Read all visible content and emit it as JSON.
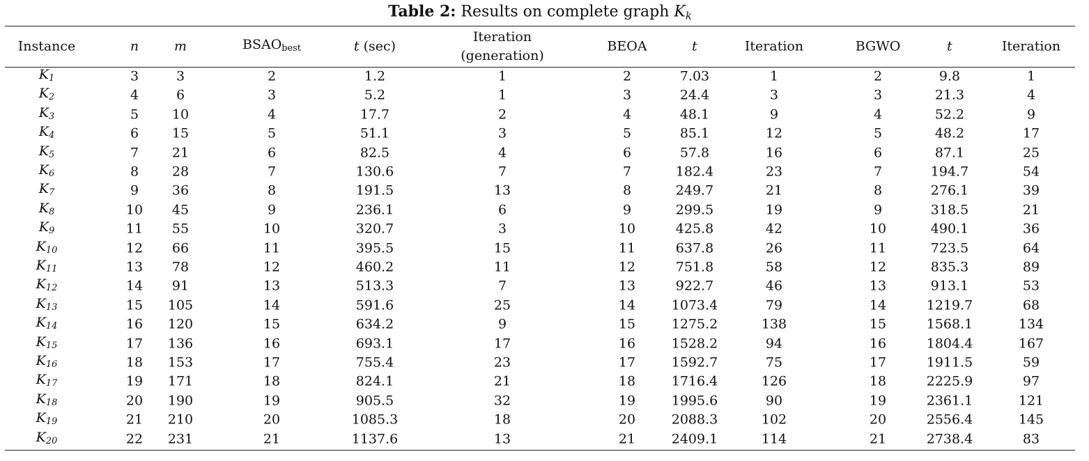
{
  "title": [
    {
      "text": "Table 2:",
      "bold": true
    },
    {
      "text": " Results on complete graph "
    },
    {
      "text": "K",
      "italic": true
    },
    {
      "text": "k",
      "sub": true,
      "italic": true
    }
  ],
  "table": {
    "header": [
      "Instance",
      [
        {
          "text": "n",
          "italic": true
        }
      ],
      [
        {
          "text": "m",
          "italic": true
        }
      ],
      [
        {
          "text": "BSAO"
        },
        {
          "text": "best",
          "sub": true
        }
      ],
      [
        {
          "text": "t",
          "italic": true
        },
        {
          "text": " (sec)"
        }
      ],
      [
        {
          "text": "Iteration"
        },
        {
          "text": "(generation)",
          "newline": true
        }
      ],
      "BEOA",
      [
        {
          "text": "t",
          "italic": true
        }
      ],
      "Iteration",
      "BGWO",
      [
        {
          "text": "t",
          "italic": true
        }
      ],
      "Iteration"
    ],
    "rows": [
      [
        [
          {
            "text": "K",
            "italic": true
          },
          {
            "text": "1",
            "sub": true,
            "italic": true
          }
        ],
        "3",
        "3",
        "2",
        "1.2",
        "1",
        "2",
        "7.03",
        "1",
        "2",
        "9.8",
        "1"
      ],
      [
        [
          {
            "text": "K",
            "italic": true
          },
          {
            "text": "2",
            "sub": true,
            "italic": true
          }
        ],
        "4",
        "6",
        "3",
        "5.2",
        "1",
        "3",
        "24.4",
        "3",
        "3",
        "21.3",
        "4"
      ],
      [
        [
          {
            "text": "K",
            "italic": true
          },
          {
            "text": "3",
            "sub": true,
            "italic": true
          }
        ],
        "5",
        "10",
        "4",
        "17.7",
        "2",
        "4",
        "48.1",
        "9",
        "4",
        "52.2",
        "9"
      ],
      [
        [
          {
            "text": "K",
            "italic": true
          },
          {
            "text": "4",
            "sub": true,
            "italic": true
          }
        ],
        "6",
        "15",
        "5",
        "51.1",
        "3",
        "5",
        "85.1",
        "12",
        "5",
        "48.2",
        "17"
      ],
      [
        [
          {
            "text": "K",
            "italic": true
          },
          {
            "text": "5",
            "sub": true,
            "italic": true
          }
        ],
        "7",
        "21",
        "6",
        "82.5",
        "4",
        "6",
        "57.8",
        "16",
        "6",
        "87.1",
        "25"
      ],
      [
        [
          {
            "text": "K",
            "italic": true
          },
          {
            "text": "6",
            "sub": true,
            "italic": true
          }
        ],
        "8",
        "28",
        "7",
        "130.6",
        "7",
        "7",
        "182.4",
        "23",
        "7",
        "194.7",
        "54"
      ],
      [
        [
          {
            "text": "K",
            "italic": true
          },
          {
            "text": "7",
            "sub": true,
            "italic": true
          }
        ],
        "9",
        "36",
        "8",
        "191.5",
        "13",
        "8",
        "249.7",
        "21",
        "8",
        "276.1",
        "39"
      ],
      [
        [
          {
            "text": "K",
            "italic": true
          },
          {
            "text": "8",
            "sub": true,
            "italic": true
          }
        ],
        "10",
        "45",
        "9",
        "236.1",
        "6",
        "9",
        "299.5",
        "19",
        "9",
        "318.5",
        "21"
      ],
      [
        [
          {
            "text": "K",
            "italic": true
          },
          {
            "text": "9",
            "sub": true,
            "italic": true
          }
        ],
        "11",
        "55",
        "10",
        "320.7",
        "3",
        "10",
        "425.8",
        "42",
        "10",
        "490.1",
        "36"
      ],
      [
        [
          {
            "text": "K",
            "italic": true
          },
          {
            "text": "10",
            "sub": true,
            "italic": true
          }
        ],
        "12",
        "66",
        "11",
        "395.5",
        "15",
        "11",
        "637.8",
        "26",
        "11",
        "723.5",
        "64"
      ],
      [
        [
          {
            "text": "K",
            "italic": true
          },
          {
            "text": "11",
            "sub": true,
            "italic": true
          }
        ],
        "13",
        "78",
        "12",
        "460.2",
        "11",
        "12",
        "751.8",
        "58",
        "12",
        "835.3",
        "89"
      ],
      [
        [
          {
            "text": "K",
            "italic": true
          },
          {
            "text": "12",
            "sub": true,
            "italic": true
          }
        ],
        "14",
        "91",
        "13",
        "513.3",
        "7",
        "13",
        "922.7",
        "46",
        "13",
        "913.1",
        "53"
      ],
      [
        [
          {
            "text": "K",
            "italic": true
          },
          {
            "text": "13",
            "sub": true,
            "italic": true
          }
        ],
        "15",
        "105",
        "14",
        "591.6",
        "25",
        "14",
        "1073.4",
        "79",
        "14",
        "1219.7",
        "68"
      ],
      [
        [
          {
            "text": "K",
            "italic": true
          },
          {
            "text": "14",
            "sub": true,
            "italic": true
          }
        ],
        "16",
        "120",
        "15",
        "634.2",
        "9",
        "15",
        "1275.2",
        "138",
        "15",
        "1568.1",
        "134"
      ],
      [
        [
          {
            "text": "K",
            "italic": true
          },
          {
            "text": "15",
            "sub": true,
            "italic": true
          }
        ],
        "17",
        "136",
        "16",
        "693.1",
        "17",
        "16",
        "1528.2",
        "94",
        "16",
        "1804.4",
        "167"
      ],
      [
        [
          {
            "text": "K",
            "italic": true
          },
          {
            "text": "16",
            "sub": true,
            "italic": true
          }
        ],
        "18",
        "153",
        "17",
        "755.4",
        "23",
        "17",
        "1592.7",
        "75",
        "17",
        "1911.5",
        "59"
      ],
      [
        [
          {
            "text": "K",
            "italic": true
          },
          {
            "text": "17",
            "sub": true,
            "italic": true
          }
        ],
        "19",
        "171",
        "18",
        "824.1",
        "21",
        "18",
        "1716.4",
        "126",
        "18",
        "2225.9",
        "97"
      ],
      [
        [
          {
            "text": "K",
            "italic": true
          },
          {
            "text": "18",
            "sub": true,
            "italic": true
          }
        ],
        "20",
        "190",
        "19",
        "905.5",
        "32",
        "19",
        "1995.6",
        "90",
        "19",
        "2361.1",
        "121"
      ],
      [
        [
          {
            "text": "K",
            "italic": true
          },
          {
            "text": "19",
            "sub": true,
            "italic": true
          }
        ],
        "21",
        "210",
        "20",
        "1085.3",
        "18",
        "20",
        "2088.3",
        "102",
        "20",
        "2556.4",
        "145"
      ],
      [
        [
          {
            "text": "K",
            "italic": true
          },
          {
            "text": "20",
            "sub": true,
            "italic": true
          }
        ],
        "22",
        "231",
        "21",
        "1137.6",
        "13",
        "21",
        "2409.1",
        "114",
        "21",
        "2738.4",
        "83"
      ]
    ]
  }
}
